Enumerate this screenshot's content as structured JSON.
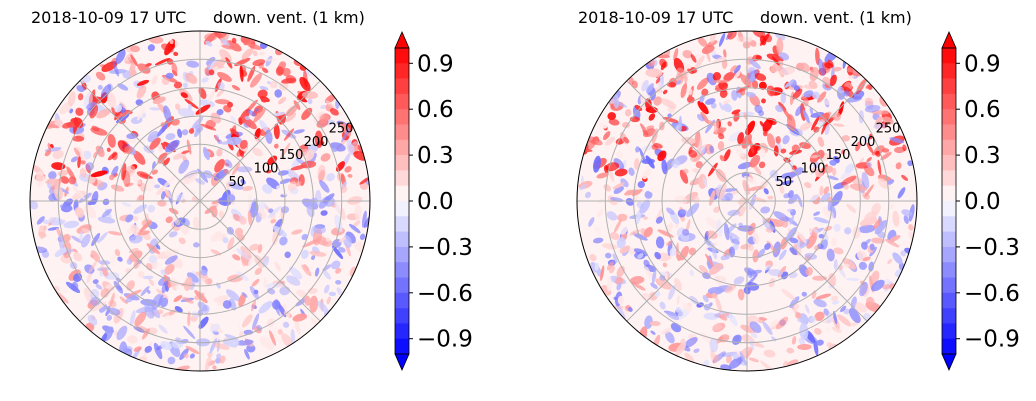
{
  "chart_data": [
    {
      "type": "heatmap",
      "projection": "polar (radar PPI)",
      "title_left": "2018-10-09 17 UTC",
      "title_right": "down. vent. (1 km)",
      "title_left_color": "#0000ff",
      "range_ring_labels": [
        "50",
        "100",
        "150",
        "200",
        "250"
      ],
      "range_rings": [
        50,
        100,
        150,
        200,
        250
      ],
      "colorbar": {
        "ticks": [
          "0.9",
          "0.6",
          "0.3",
          "0.0",
          "−0.3",
          "−0.6",
          "−0.9"
        ],
        "vmin": -1.0,
        "vmax": 1.0,
        "extend": "both",
        "cmap": "bwr",
        "colors": {
          "min": "#0000ff",
          "mid": "#ffffff",
          "max": "#ff0000"
        }
      },
      "grid": true
    },
    {
      "type": "heatmap",
      "projection": "polar (radar PPI)",
      "title_left": "2018-10-09 17 UTC",
      "title_right": "down. vent. (1 km)",
      "title_left_color": "#0000ff",
      "range_ring_labels": [
        "50",
        "100",
        "150",
        "200",
        "250"
      ],
      "range_rings": [
        50,
        100,
        150,
        200,
        250
      ],
      "colorbar": {
        "ticks": [
          "0.9",
          "0.6",
          "0.3",
          "0.0",
          "−0.3",
          "−0.6",
          "−0.9"
        ],
        "vmin": -1.0,
        "vmax": 1.0,
        "extend": "both",
        "cmap": "bwr",
        "colors": {
          "min": "#0000ff",
          "mid": "#ffffff",
          "max": "#ff0000"
        }
      },
      "grid": true
    }
  ]
}
